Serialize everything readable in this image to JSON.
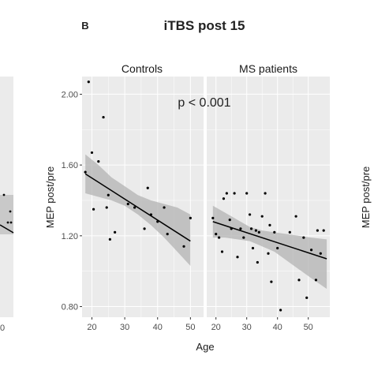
{
  "panel_label": "B",
  "title": "iTBS post 15",
  "left_panel_tick": "0",
  "annotation": "p < 0.001",
  "colors": {
    "panel_bg": "#ebebeb",
    "grid": "#ffffff",
    "points": "#000000",
    "ribbon": "#b3b3b3",
    "fit_line": "#000000"
  },
  "chart_data": [
    {
      "type": "scatter",
      "facet": "Controls",
      "xlabel": "Age",
      "ylabel": "MEP post/pre",
      "xlim": [
        17,
        54
      ],
      "ylim": [
        0.74,
        2.1
      ],
      "x_ticks": [
        "20",
        "30",
        "40",
        "50"
      ],
      "y_ticks": [
        "0.80",
        "1.20",
        "1.60",
        "2.00"
      ],
      "grid": true,
      "points": [
        {
          "x": 18,
          "y": 1.56
        },
        {
          "x": 19,
          "y": 2.07
        },
        {
          "x": 20,
          "y": 1.67
        },
        {
          "x": 20.5,
          "y": 1.35
        },
        {
          "x": 22,
          "y": 1.62
        },
        {
          "x": 23.5,
          "y": 1.87
        },
        {
          "x": 24.5,
          "y": 1.36
        },
        {
          "x": 25,
          "y": 1.43
        },
        {
          "x": 25.5,
          "y": 1.18
        },
        {
          "x": 27,
          "y": 1.22
        },
        {
          "x": 31,
          "y": 1.38
        },
        {
          "x": 33,
          "y": 1.36
        },
        {
          "x": 36,
          "y": 1.24
        },
        {
          "x": 37,
          "y": 1.47
        },
        {
          "x": 38,
          "y": 1.32
        },
        {
          "x": 40,
          "y": 1.28
        },
        {
          "x": 42,
          "y": 1.36
        },
        {
          "x": 43,
          "y": 1.21
        },
        {
          "x": 48,
          "y": 1.14
        },
        {
          "x": 50,
          "y": 1.3
        }
      ],
      "fit": {
        "x": [
          18,
          50
        ],
        "y": [
          1.55,
          1.17
        ]
      },
      "ci": {
        "x": [
          18,
          22,
          26,
          30,
          34,
          38,
          42,
          46,
          50
        ],
        "lo": [
          1.44,
          1.42,
          1.4,
          1.37,
          1.32,
          1.26,
          1.19,
          1.11,
          1.03
        ],
        "hi": [
          1.66,
          1.6,
          1.53,
          1.48,
          1.43,
          1.4,
          1.38,
          1.36,
          1.32
        ]
      }
    },
    {
      "type": "scatter",
      "facet": "MS patients",
      "xlabel": "Age",
      "ylabel": "MEP post/pre",
      "xlim": [
        17,
        57
      ],
      "ylim": [
        0.74,
        2.1
      ],
      "x_ticks": [
        "20",
        "30",
        "40",
        "50"
      ],
      "y_ticks": [
        "0.80",
        "1.20",
        "1.60",
        "2.00"
      ],
      "grid": true,
      "points": [
        {
          "x": 19,
          "y": 1.3
        },
        {
          "x": 20,
          "y": 1.21
        },
        {
          "x": 21,
          "y": 1.19
        },
        {
          "x": 22,
          "y": 1.11
        },
        {
          "x": 22.5,
          "y": 1.41
        },
        {
          "x": 23.5,
          "y": 1.44
        },
        {
          "x": 24.5,
          "y": 1.29
        },
        {
          "x": 25,
          "y": 1.24
        },
        {
          "x": 26,
          "y": 1.44
        },
        {
          "x": 27,
          "y": 1.08
        },
        {
          "x": 28,
          "y": 1.24
        },
        {
          "x": 29,
          "y": 1.19
        },
        {
          "x": 30,
          "y": 1.44
        },
        {
          "x": 31,
          "y": 1.32
        },
        {
          "x": 31.5,
          "y": 1.24
        },
        {
          "x": 32,
          "y": 1.13
        },
        {
          "x": 33,
          "y": 1.23
        },
        {
          "x": 33.5,
          "y": 1.05
        },
        {
          "x": 34,
          "y": 1.22
        },
        {
          "x": 35,
          "y": 1.31
        },
        {
          "x": 36,
          "y": 1.44
        },
        {
          "x": 37,
          "y": 1.1
        },
        {
          "x": 37.5,
          "y": 1.26
        },
        {
          "x": 38,
          "y": 0.94
        },
        {
          "x": 39,
          "y": 1.22
        },
        {
          "x": 40,
          "y": 1.13
        },
        {
          "x": 41,
          "y": 0.78
        },
        {
          "x": 44,
          "y": 1.22
        },
        {
          "x": 46,
          "y": 1.31
        },
        {
          "x": 47,
          "y": 0.95
        },
        {
          "x": 48.5,
          "y": 1.19
        },
        {
          "x": 49.5,
          "y": 0.85
        },
        {
          "x": 51,
          "y": 1.12
        },
        {
          "x": 52.5,
          "y": 0.95
        },
        {
          "x": 53,
          "y": 1.23
        },
        {
          "x": 54,
          "y": 1.1
        },
        {
          "x": 55,
          "y": 1.23
        }
      ],
      "fit": {
        "x": [
          19,
          56
        ],
        "y": [
          1.28,
          1.07
        ]
      },
      "ci": {
        "x": [
          19,
          23,
          27,
          31,
          35,
          39,
          43,
          47,
          51,
          56
        ],
        "lo": [
          1.19,
          1.19,
          1.18,
          1.17,
          1.14,
          1.11,
          1.06,
          1.01,
          0.96,
          0.9
        ],
        "hi": [
          1.37,
          1.33,
          1.29,
          1.25,
          1.23,
          1.22,
          1.21,
          1.2,
          1.19,
          1.18
        ]
      }
    }
  ]
}
